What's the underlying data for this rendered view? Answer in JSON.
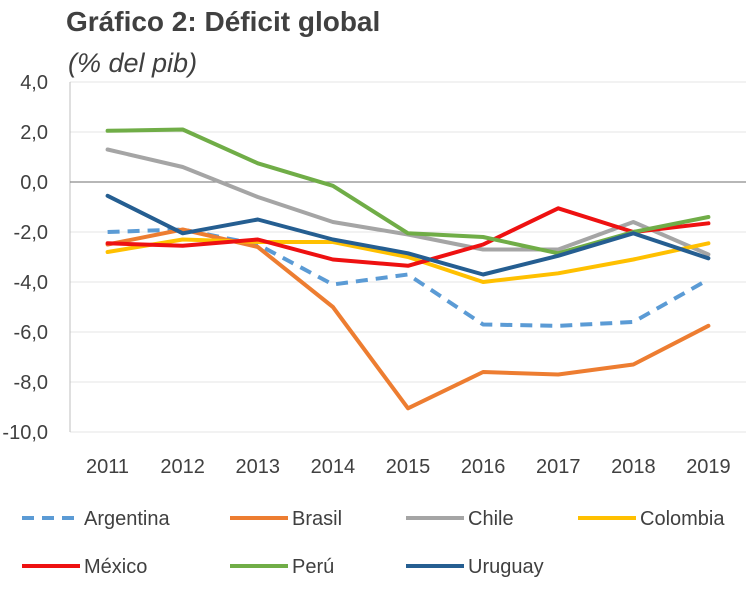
{
  "header": {
    "title": "Gráfico 2: Déficit global",
    "subtitle": "(% del pib)"
  },
  "chart_data": {
    "type": "line",
    "title": "Gráfico 2: Déficit global",
    "subtitle": "(% del pib)",
    "xlabel": "",
    "ylabel": "",
    "categories": [
      "2011",
      "2012",
      "2013",
      "2014",
      "2015",
      "2016",
      "2017",
      "2018",
      "2019"
    ],
    "yticks": [
      "4,0",
      "2,0",
      "0,0",
      "-2,0",
      "-4,0",
      "-6,0",
      "-8,0",
      "-10,0"
    ],
    "ylim": [
      -10,
      4
    ],
    "grid": true,
    "legend_position": "bottom",
    "series": [
      {
        "name": "Argentina",
        "color": "#5b9bd5",
        "dashed": true,
        "values": [
          -2.0,
          -1.9,
          -2.5,
          -4.1,
          -3.7,
          -5.7,
          -5.75,
          -5.6,
          -3.9
        ]
      },
      {
        "name": "Brasil",
        "color": "#ed7d31",
        "dashed": false,
        "values": [
          -2.5,
          -1.9,
          -2.6,
          -5.0,
          -9.05,
          -7.6,
          -7.7,
          -7.3,
          -5.75
        ]
      },
      {
        "name": "Chile",
        "color": "#a5a5a5",
        "dashed": false,
        "values": [
          1.3,
          0.6,
          -0.6,
          -1.6,
          -2.1,
          -2.7,
          -2.7,
          -1.6,
          -2.9
        ]
      },
      {
        "name": "Colombia",
        "color": "#ffc000",
        "dashed": false,
        "values": [
          -2.8,
          -2.3,
          -2.4,
          -2.4,
          -3.0,
          -4.0,
          -3.65,
          -3.1,
          -2.45
        ]
      },
      {
        "name": "México",
        "color": "#ee1111",
        "dashed": false,
        "values": [
          -2.45,
          -2.55,
          -2.3,
          -3.1,
          -3.35,
          -2.5,
          -1.05,
          -2.0,
          -1.65
        ]
      },
      {
        "name": "Perú",
        "color": "#70ad47",
        "dashed": false,
        "values": [
          2.05,
          2.1,
          0.75,
          -0.15,
          -2.05,
          -2.2,
          -2.85,
          -2.0,
          -1.4
        ]
      },
      {
        "name": "Uruguay",
        "color": "#255e91",
        "dashed": false,
        "values": [
          -0.55,
          -2.05,
          -1.5,
          -2.3,
          -2.85,
          -3.7,
          -2.95,
          -2.05,
          -3.05
        ]
      }
    ]
  }
}
